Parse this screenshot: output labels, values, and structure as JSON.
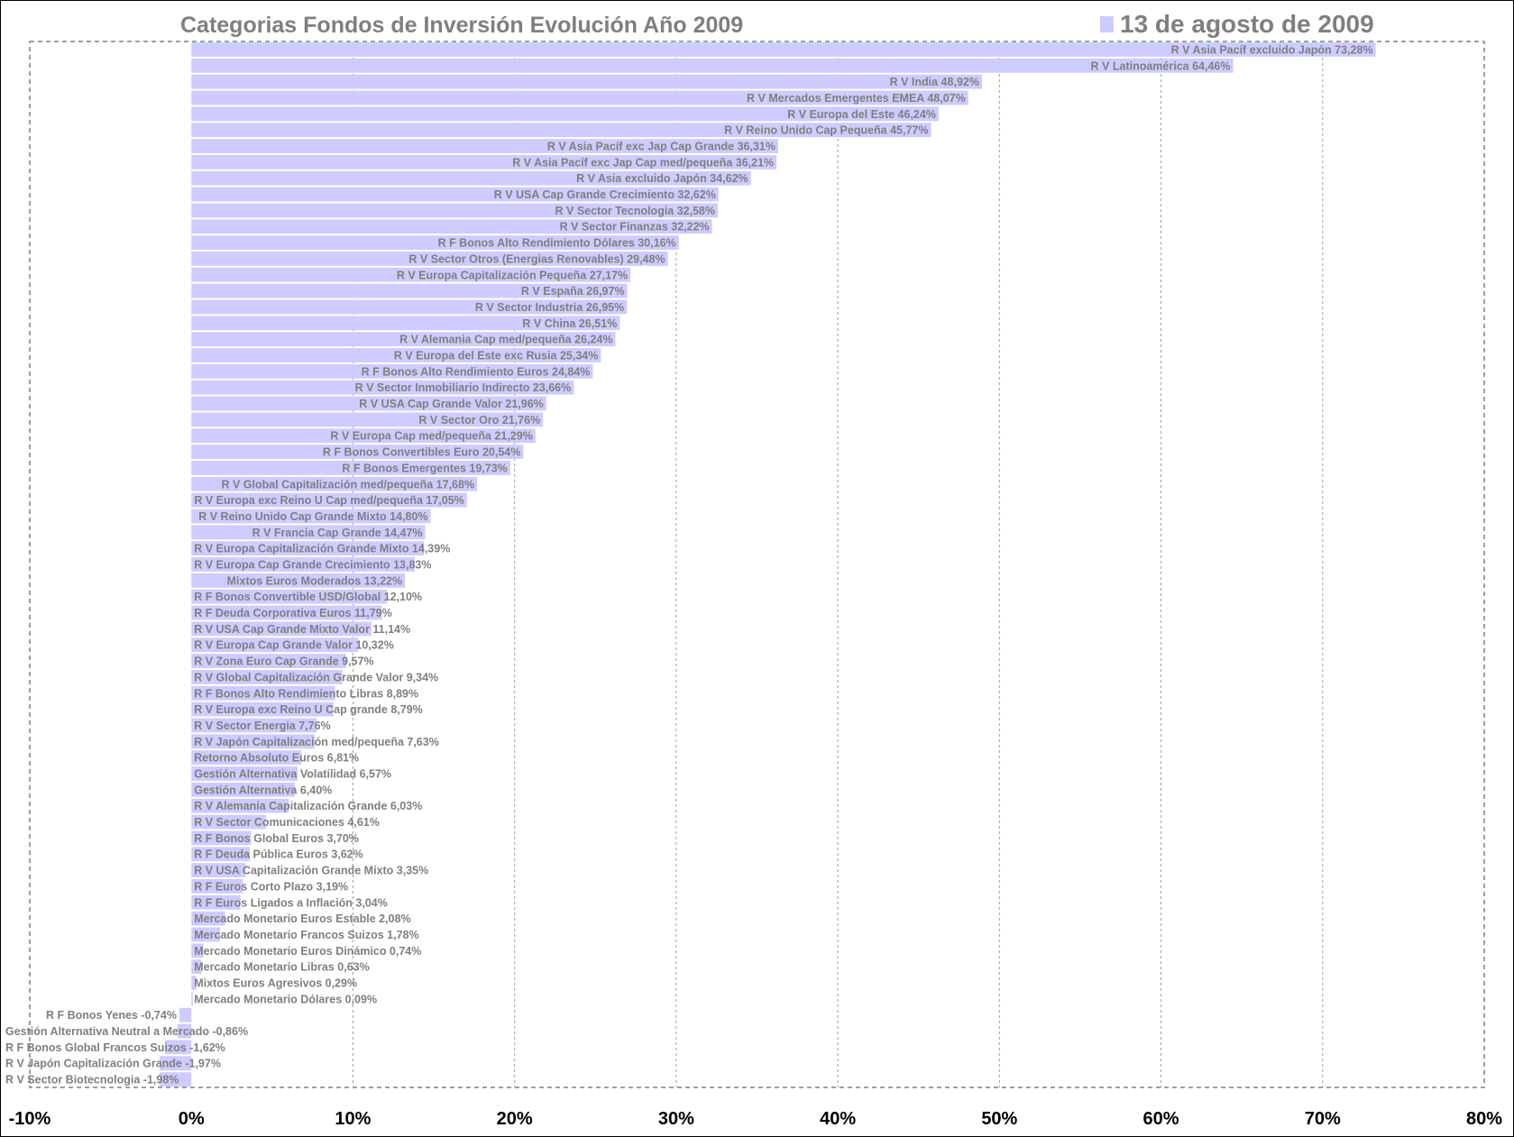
{
  "chart_data": {
    "type": "bar",
    "orientation": "horizontal",
    "title": "Categorias Fondos de Inversión Evolución Año 2009",
    "legend": {
      "label": "13 de agosto de 2009",
      "position": "top-right"
    },
    "colors": {
      "bar": "#ccccff",
      "text": "#7f7f7f",
      "grid": "#a0a0a0",
      "ticks": "#000000"
    },
    "xlim": [
      -10,
      80
    ],
    "xticks": [
      -10,
      0,
      10,
      20,
      30,
      40,
      50,
      60,
      70,
      80
    ],
    "xtick_labels": [
      "-10%",
      "0%",
      "10%",
      "20%",
      "30%",
      "40%",
      "50%",
      "60%",
      "70%",
      "80%"
    ],
    "grid": true,
    "categories": [
      "R V Asia Pacíf excluido Japón",
      "R V Latinoamérica",
      "R V India",
      "R V Mercados Emergentes EMEA",
      "R V Europa del Este",
      "R V Reino Unido Cap Pequeña",
      "R V Asia Pacíf exc Jap Cap Grande",
      "R V Asia Pacíf exc Jap Cap med/pequeña",
      "R V Asia excluido Japón",
      "R V USA Cap Grande Crecimiento",
      "R V Sector Tecnologia",
      "R V Sector Finanzas",
      "R F Bonos Alto Rendimiento Dólares",
      "R V Sector Otros (Energias Renovables)",
      "R V Europa Capitalización Pequeña",
      "R V España",
      "R V Sector Industria",
      "R V China",
      "R V Alemania Cap med/pequeña",
      "R V Europa del Este exc Rusia",
      "R F Bonos Alto Rendimiento Euros",
      "R V Sector Inmobiliario Indirecto",
      "R V USA Cap Grande Valor",
      "R V Sector Oro",
      "R V Europa Cap med/pequeña",
      "R F Bonos Convertibles Euro",
      "R F Bonos Emergentes",
      "R V Global Capitalización med/pequeña",
      "R V Europa exc Reino U Cap med/pequeña",
      "R V Reino Unido Cap Grande Mixto",
      "R V Francia Cap Grande",
      "R V Europa Capitalización Grande Mixto",
      "R V Europa Cap Grande Crecimiento",
      "Mixtos Euros Moderados",
      "R F Bonos Convertible USD/Global",
      "R F Deuda Corporativa Euros",
      "R V USA Cap Grande Mixto Valor",
      "R V Europa Cap Grande Valor",
      "R V Zona Euro Cap Grande",
      "R V Global Capitalización Grande Valor",
      "R F Bonos Alto Rendimiento Libras",
      "R V Europa exc Reino U Cap grande",
      "R V Sector Energia",
      "R V Japón Capitalización med/pequeña",
      "Retorno Absoluto Euros",
      "Gestión Alternativa Volatilidad",
      "Gestión Alternativa",
      "R V Alemania Capitalización Grande",
      "R V Sector Comunicaciones",
      "R F Bonos Global Euros",
      "R F Deuda Pública Euros",
      "R V USA Capitalización Grande Mixto",
      "R F Euros Corto Plazo",
      "R F Euros Ligados a Inflación",
      "Mercado Monetario Euros Estable",
      "Mercado Monetario Francos Suizos",
      "Mercado Monetario Euros Dinámico",
      "Mercado Monetario Libras",
      "Mixtos Euros Agresivos",
      "Mercado Monetario Dólares",
      "R F Bonos Yenes",
      "Gestión Alternativa Neutral a Mercado",
      "R F Bonos Global Francos Suizos",
      "R V Japón Capitalización Grande",
      "R V Sector Biotecnologia"
    ],
    "values": [
      73.28,
      64.46,
      48.92,
      48.07,
      46.24,
      45.77,
      36.31,
      36.21,
      34.62,
      32.62,
      32.58,
      32.22,
      30.16,
      29.48,
      27.17,
      26.97,
      26.95,
      26.51,
      26.24,
      25.34,
      24.84,
      23.66,
      21.96,
      21.76,
      21.29,
      20.54,
      19.73,
      17.68,
      17.05,
      14.8,
      14.47,
      14.39,
      13.83,
      13.22,
      12.1,
      11.79,
      11.14,
      10.32,
      9.57,
      9.34,
      8.89,
      8.79,
      7.76,
      7.63,
      6.81,
      6.57,
      6.4,
      6.03,
      4.61,
      3.7,
      3.62,
      3.35,
      3.19,
      3.04,
      2.08,
      1.78,
      0.74,
      0.63,
      0.29,
      0.09,
      -0.74,
      -0.86,
      -1.62,
      -1.97,
      -1.98
    ],
    "value_labels": [
      "73,28%",
      "64,46%",
      "48,92%",
      "48,07%",
      "46,24%",
      "45,77%",
      "36,31%",
      "36,21%",
      "34,62%",
      "32,62%",
      "32,58%",
      "32,22%",
      "30,16%",
      "29,48%",
      "27,17%",
      "26,97%",
      "26,95%",
      "26,51%",
      "26,24%",
      "25,34%",
      "24,84%",
      "23,66%",
      "21,96%",
      "21,76%",
      "21,29%",
      "20,54%",
      "19,73%",
      "17,68%",
      "17,05%",
      "14,80%",
      "14,47%",
      "14,39%",
      "13,83%",
      "13,22%",
      "12,10%",
      "11,79%",
      "11,14%",
      "10,32%",
      "9,57%",
      "9,34%",
      "8,89%",
      "8,79%",
      "7,76%",
      "7,63%",
      "6,81%",
      "6,57%",
      "6,40%",
      "6,03%",
      "4,61%",
      "3,70%",
      "3,62%",
      "3,35%",
      "3,19%",
      "3,04%",
      "2,08%",
      "1,78%",
      "0,74%",
      "0,63%",
      "0,29%",
      "0,09%",
      "-0,74%",
      "-0,86%",
      "-1,62%",
      "-1,97%",
      "-1,98%"
    ]
  }
}
